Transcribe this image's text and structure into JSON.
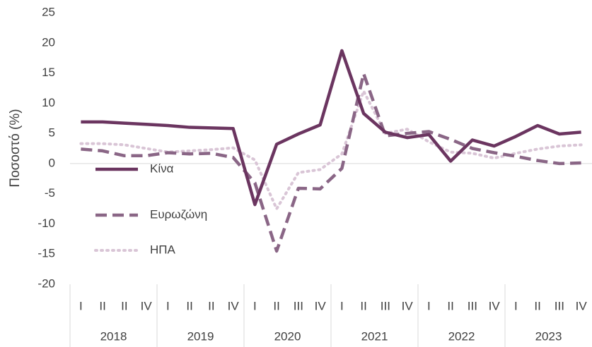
{
  "chart_data": {
    "type": "line",
    "ylabel": "Ποσοστό (%)",
    "categories": [
      "I",
      "II",
      "II",
      "IV",
      "I",
      "II",
      "II",
      "IV",
      "I",
      "II",
      "III",
      "IV",
      "I",
      "II",
      "III",
      "IV",
      "I",
      "II",
      "III",
      "IV",
      "I",
      "II",
      "III",
      "IV"
    ],
    "years": [
      "2018",
      "2019",
      "2020",
      "2021",
      "2022",
      "2023"
    ],
    "ylim": [
      -20,
      25
    ],
    "yticks": [
      -20,
      -15,
      -10,
      -5,
      0,
      5,
      10,
      15,
      20,
      25
    ],
    "grid": false,
    "legend": "left",
    "series": [
      {
        "name": "Κίνα",
        "color": "#6b3560",
        "style": "solid",
        "values": [
          6.9,
          6.9,
          6.7,
          6.5,
          6.3,
          6.0,
          5.9,
          5.8,
          -6.8,
          3.2,
          4.9,
          6.4,
          18.7,
          8.3,
          5.2,
          4.3,
          4.8,
          0.4,
          3.9,
          2.9,
          4.5,
          6.3,
          4.9,
          5.2
        ]
      },
      {
        "name": "Ευρωζώνη",
        "color": "#8a6686",
        "style": "dashed",
        "values": [
          2.4,
          2.1,
          1.3,
          1.3,
          1.8,
          1.6,
          1.7,
          1.0,
          -3.2,
          -14.5,
          -4.1,
          -4.2,
          -0.8,
          14.9,
          4.6,
          5.0,
          5.3,
          4.0,
          2.5,
          1.8,
          1.2,
          0.5,
          0.0,
          0.1
        ]
      },
      {
        "name": "ΗΠΑ",
        "color": "#d9c5d6",
        "style": "dotted",
        "values": [
          3.3,
          3.3,
          3.1,
          2.5,
          1.9,
          2.1,
          2.3,
          2.6,
          0.6,
          -7.5,
          -1.5,
          -1.0,
          1.6,
          12.0,
          5.0,
          5.7,
          3.6,
          1.9,
          1.7,
          0.9,
          1.7,
          2.4,
          2.9,
          3.1
        ]
      }
    ]
  }
}
